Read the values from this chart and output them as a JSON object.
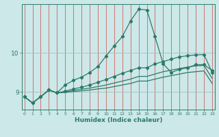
{
  "xlabel": "Humidex (Indice chaleur)",
  "background_color": "#cce8e8",
  "grid_color_v": "#d06060",
  "grid_color_h": "#a0c0c0",
  "line_color": "#2a7a6a",
  "x_min": 0,
  "x_max": 23,
  "y_min": 8.55,
  "y_max": 11.25,
  "yticks": [
    9,
    10
  ],
  "xticks": [
    0,
    1,
    2,
    3,
    4,
    5,
    6,
    7,
    8,
    9,
    10,
    11,
    12,
    13,
    14,
    15,
    16,
    17,
    18,
    19,
    20,
    21,
    22,
    23
  ],
  "line1_x": [
    0,
    1,
    2,
    3,
    4,
    5,
    6,
    7,
    8,
    9,
    10,
    11,
    12,
    13,
    14,
    15,
    16,
    17,
    18,
    19,
    20,
    21,
    22,
    23
  ],
  "line1_y": [
    8.88,
    8.72,
    8.88,
    9.05,
    8.98,
    9.18,
    9.3,
    9.38,
    9.5,
    9.65,
    9.92,
    10.18,
    10.42,
    10.82,
    11.12,
    11.1,
    10.42,
    9.72,
    9.5,
    9.58,
    9.62,
    9.7,
    9.7,
    9.55
  ],
  "line2_x": [
    0,
    1,
    2,
    3,
    4,
    5,
    6,
    7,
    8,
    9,
    10,
    11,
    12,
    13,
    14,
    15,
    16,
    17,
    18,
    19,
    20,
    21,
    22,
    23
  ],
  "line2_y": [
    8.88,
    8.72,
    8.88,
    9.05,
    8.98,
    9.02,
    9.08,
    9.12,
    9.18,
    9.25,
    9.32,
    9.4,
    9.48,
    9.55,
    9.62,
    9.62,
    9.72,
    9.78,
    9.84,
    9.9,
    9.93,
    9.95,
    9.96,
    9.5
  ],
  "line3_x": [
    0,
    1,
    2,
    3,
    4,
    5,
    6,
    7,
    8,
    9,
    10,
    11,
    12,
    13,
    14,
    15,
    16,
    17,
    18,
    19,
    20,
    21,
    22,
    23
  ],
  "line3_y": [
    8.88,
    8.72,
    8.88,
    9.05,
    8.98,
    9.0,
    9.04,
    9.07,
    9.1,
    9.14,
    9.18,
    9.23,
    9.28,
    9.33,
    9.4,
    9.4,
    9.46,
    9.52,
    9.56,
    9.6,
    9.64,
    9.67,
    9.68,
    9.35
  ],
  "line4_x": [
    0,
    1,
    2,
    3,
    4,
    5,
    6,
    7,
    8,
    9,
    10,
    11,
    12,
    13,
    14,
    15,
    16,
    17,
    18,
    19,
    20,
    21,
    22,
    23
  ],
  "line4_y": [
    8.88,
    8.72,
    8.88,
    9.05,
    8.98,
    8.99,
    9.01,
    9.03,
    9.05,
    9.08,
    9.1,
    9.14,
    9.18,
    9.22,
    9.28,
    9.28,
    9.33,
    9.38,
    9.42,
    9.46,
    9.5,
    9.52,
    9.54,
    9.22
  ]
}
